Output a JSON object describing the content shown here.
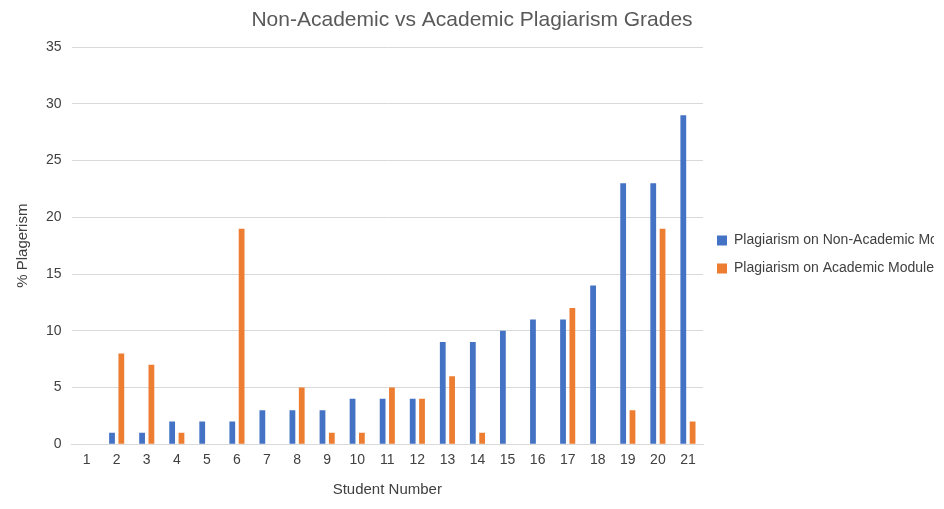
{
  "chart_data": {
    "type": "bar",
    "title": "Non-Academic vs Academic Plagiarism Grades",
    "x_label": "Student Number",
    "y_label": "% Plagerism",
    "categories": [
      "1",
      "2",
      "3",
      "4",
      "5",
      "6",
      "7",
      "8",
      "9",
      "10",
      "11",
      "12",
      "13",
      "14",
      "15",
      "16",
      "17",
      "18",
      "19",
      "20",
      "21"
    ],
    "series": [
      {
        "name": "Plagiarism on Non-Academic Module",
        "color": "#4472c4",
        "values": [
          0,
          1,
          1,
          2,
          2,
          2,
          3,
          3,
          3,
          4,
          4,
          4,
          9,
          9,
          10,
          11,
          11,
          14,
          23,
          23,
          29
        ]
      },
      {
        "name": "Plagiarism on Academic Module",
        "color": "#ed7d31",
        "values": [
          0,
          8,
          7,
          1,
          0,
          19,
          0,
          5,
          1,
          1,
          5,
          4,
          6,
          1,
          0,
          0,
          12,
          0,
          3,
          19,
          2
        ]
      }
    ],
    "ylim": [
      0,
      35
    ],
    "yticks": [
      0,
      5,
      10,
      15,
      20,
      25,
      30,
      35
    ],
    "grid": true,
    "legend": "right"
  }
}
